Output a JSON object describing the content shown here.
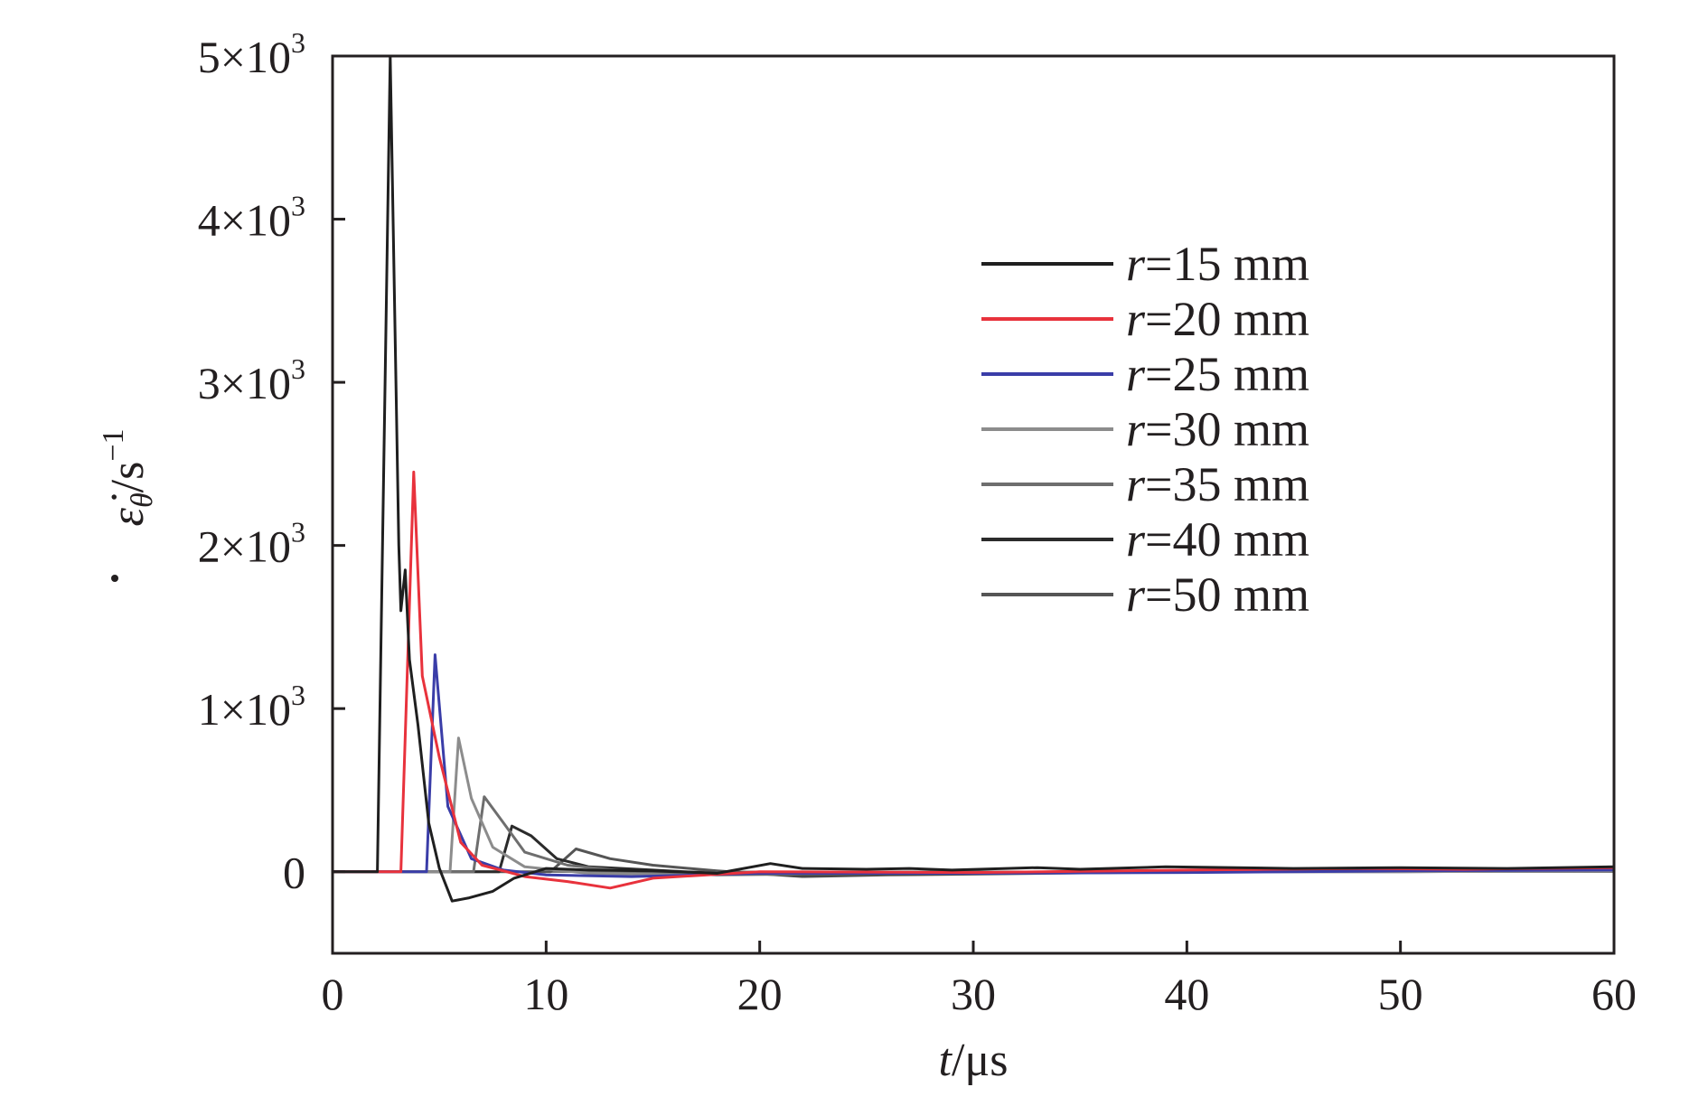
{
  "chart_data": {
    "type": "line",
    "title": "",
    "xlabel_var": "t",
    "xlabel_unit": "/μs",
    "ylabel_var": "ε̇",
    "ylabel_sub": "θ",
    "ylabel_unit": "/s",
    "ylabel_exp": "−1",
    "xlim": [
      0,
      60
    ],
    "ylim": [
      -500,
      5000
    ],
    "xticks": [
      0,
      10,
      20,
      30,
      40,
      50,
      60
    ],
    "xtick_labels": [
      "0",
      "10",
      "20",
      "30",
      "40",
      "50",
      "60"
    ],
    "yticks": [
      0,
      1000,
      2000,
      3000,
      4000,
      5000
    ],
    "ytick_labels": [
      {
        "mant": "0",
        "exp": ""
      },
      {
        "mant": "1×10",
        "exp": "3"
      },
      {
        "mant": "2×10",
        "exp": "3"
      },
      {
        "mant": "3×10",
        "exp": "3"
      },
      {
        "mant": "4×10",
        "exp": "3"
      },
      {
        "mant": "5×10",
        "exp": "3"
      }
    ],
    "grid": false,
    "legend_position": "upper-right",
    "series": [
      {
        "var": "r",
        "rest": "=15 mm",
        "color": "#1f1f1f",
        "points": [
          [
            0,
            0
          ],
          [
            2.1,
            0
          ],
          [
            2.7,
            5000
          ],
          [
            3.1,
            2000
          ],
          [
            3.2,
            1600
          ],
          [
            3.4,
            1850
          ],
          [
            3.6,
            1300
          ],
          [
            4,
            900
          ],
          [
            4.5,
            300
          ],
          [
            5,
            20
          ],
          [
            5.6,
            -180
          ],
          [
            6.4,
            -160
          ],
          [
            7.5,
            -120
          ],
          [
            8.5,
            -40
          ],
          [
            10,
            20
          ],
          [
            12,
            10
          ],
          [
            15,
            5
          ],
          [
            18,
            -10
          ],
          [
            20.5,
            50
          ],
          [
            22,
            20
          ],
          [
            25,
            15
          ],
          [
            27,
            20
          ],
          [
            29,
            10
          ],
          [
            33,
            25
          ],
          [
            35,
            15
          ],
          [
            39,
            30
          ],
          [
            45,
            20
          ],
          [
            50,
            25
          ],
          [
            55,
            20
          ],
          [
            60,
            30
          ]
        ]
      },
      {
        "var": "r",
        "rest": "=20 mm",
        "color": "#e8323c",
        "points": [
          [
            0,
            0
          ],
          [
            3.2,
            0
          ],
          [
            3.8,
            2450
          ],
          [
            4.2,
            1200
          ],
          [
            5,
            700
          ],
          [
            6,
            180
          ],
          [
            7,
            40
          ],
          [
            9,
            -30
          ],
          [
            11,
            -60
          ],
          [
            13,
            -100
          ],
          [
            15,
            -40
          ],
          [
            20,
            0
          ],
          [
            30,
            -5
          ],
          [
            40,
            10
          ],
          [
            48,
            20
          ],
          [
            53,
            15
          ],
          [
            60,
            25
          ]
        ]
      },
      {
        "var": "r",
        "rest": "=25 mm",
        "color": "#3a3da8",
        "points": [
          [
            0,
            0
          ],
          [
            4.4,
            0
          ],
          [
            4.8,
            1330
          ],
          [
            5.4,
            400
          ],
          [
            6.5,
            80
          ],
          [
            8,
            10
          ],
          [
            10,
            -20
          ],
          [
            14,
            -30
          ],
          [
            20,
            -10
          ],
          [
            30,
            -10
          ],
          [
            40,
            -5
          ],
          [
            50,
            5
          ],
          [
            60,
            10
          ]
        ]
      },
      {
        "var": "r",
        "rest": "=30 mm",
        "color": "#8c8c8c",
        "points": [
          [
            0,
            0
          ],
          [
            5.5,
            0
          ],
          [
            5.9,
            820
          ],
          [
            6.5,
            450
          ],
          [
            7.5,
            150
          ],
          [
            9,
            30
          ],
          [
            12,
            -10
          ],
          [
            16,
            -20
          ],
          [
            20,
            -10
          ],
          [
            30,
            -5
          ],
          [
            40,
            0
          ],
          [
            50,
            0
          ],
          [
            60,
            5
          ]
        ]
      },
      {
        "var": "r",
        "rest": "=35 mm",
        "color": "#6e6e6e",
        "points": [
          [
            0,
            0
          ],
          [
            6.6,
            0
          ],
          [
            7.1,
            460
          ],
          [
            8,
            300
          ],
          [
            9,
            120
          ],
          [
            11,
            40
          ],
          [
            14,
            0
          ],
          [
            18,
            -20
          ],
          [
            22,
            -15
          ],
          [
            30,
            -10
          ],
          [
            40,
            0
          ],
          [
            50,
            0
          ],
          [
            60,
            5
          ]
        ]
      },
      {
        "var": "r",
        "rest": "=40 mm",
        "color": "#2b2b2b",
        "points": [
          [
            0,
            0
          ],
          [
            7.8,
            0
          ],
          [
            8.4,
            280
          ],
          [
            9.3,
            220
          ],
          [
            10.5,
            80
          ],
          [
            12,
            30
          ],
          [
            15,
            10
          ],
          [
            18,
            -10
          ],
          [
            22,
            -20
          ],
          [
            30,
            -10
          ],
          [
            40,
            0
          ],
          [
            50,
            5
          ],
          [
            60,
            10
          ]
        ]
      },
      {
        "var": "r",
        "rest": "=50 mm",
        "color": "#555555",
        "points": [
          [
            0,
            0
          ],
          [
            10.2,
            0
          ],
          [
            11.4,
            140
          ],
          [
            13,
            80
          ],
          [
            15,
            40
          ],
          [
            18,
            5
          ],
          [
            22,
            -30
          ],
          [
            26,
            -20
          ],
          [
            30,
            -15
          ],
          [
            40,
            0
          ],
          [
            50,
            5
          ],
          [
            60,
            5
          ]
        ]
      }
    ]
  }
}
